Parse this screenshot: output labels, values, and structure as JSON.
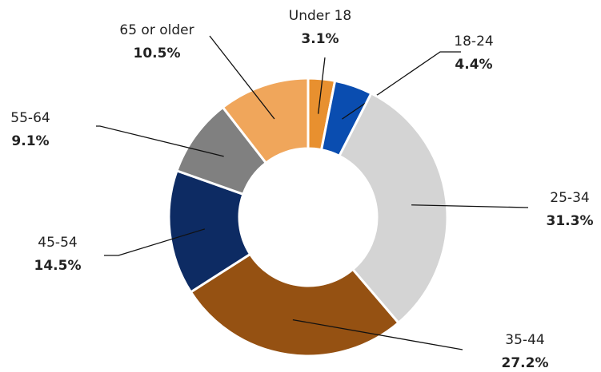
{
  "chart_data": {
    "type": "donut",
    "categories": [
      "Under 18",
      "18-24",
      "25-34",
      "35-44",
      "45-54",
      "55-64",
      "65 or older"
    ],
    "values": [
      3.1,
      4.4,
      31.3,
      27.2,
      14.5,
      9.1,
      10.5
    ],
    "value_labels": [
      "3.1%",
      "4.4%",
      "31.3%",
      "27.2%",
      "14.5%",
      "9.1%",
      "10.5%"
    ],
    "colors": [
      "#e8902f",
      "#0a4db0",
      "#d4d4d4",
      "#955112",
      "#0d2b63",
      "#808080",
      "#f0a65b"
    ]
  }
}
